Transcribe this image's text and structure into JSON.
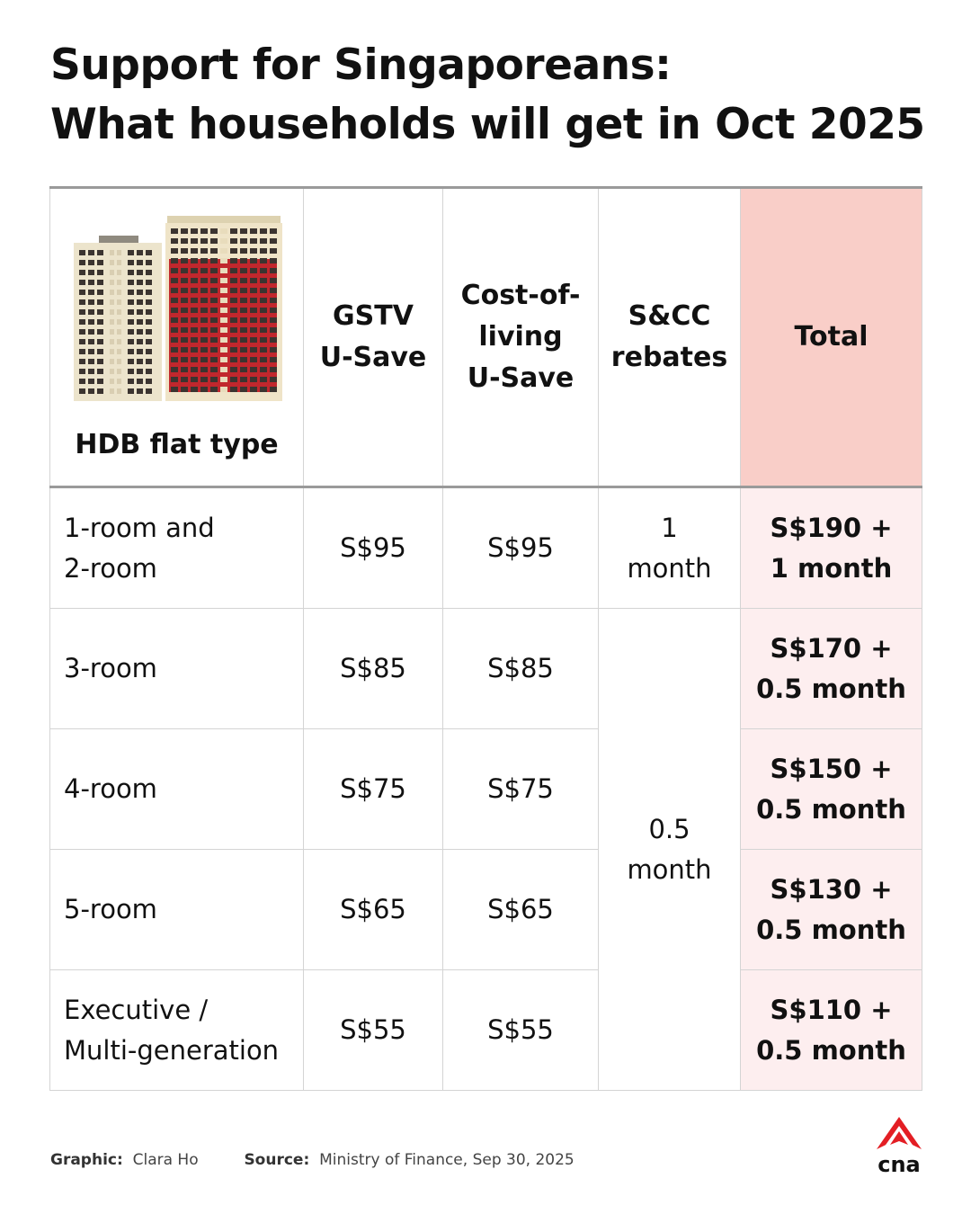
{
  "title": [
    "Support for Singaporeans:",
    "What households will get in Oct 2025"
  ],
  "chart_data": {
    "type": "table",
    "columns": [
      "HDB flat type",
      "GSTV\nU-Save",
      "Cost-of-\nliving\nU-Save",
      "S&CC\nrebates",
      "Total"
    ],
    "rows": [
      {
        "flat": "1-room and\n2-room",
        "gstv": "S$95",
        "col": "S$95",
        "total": "S$190 +\n1 month"
      },
      {
        "flat": "3-room",
        "gstv": "S$85",
        "col": "S$85",
        "total": "S$170 +\n0.5 month"
      },
      {
        "flat": "4-room",
        "gstv": "S$75",
        "col": "S$75",
        "total": "S$150 +\n0.5 month"
      },
      {
        "flat": "5-room",
        "gstv": "S$65",
        "col": "S$65",
        "total": "S$130 +\n0.5 month"
      },
      {
        "flat": "Executive /\nMulti-generation",
        "gstv": "S$55",
        "col": "S$55",
        "total": "S$110 +\n0.5 month"
      }
    ],
    "scc_rebates": [
      {
        "value": "1\nmonth",
        "applies_to": [
          "1-room and 2-room"
        ]
      },
      {
        "value": "0.5\nmonth",
        "applies_to": [
          "3-room",
          "4-room",
          "5-room",
          "Executive / Multi-generation"
        ]
      }
    ]
  },
  "footer": {
    "graphic_label": "Graphic:",
    "graphic_value": "Clara Ho",
    "source_label": "Source:",
    "source_value": "Ministry of Finance, Sep 30, 2025"
  },
  "logo": {
    "text": "cna",
    "color": "#e31e24"
  },
  "colors": {
    "total_header_bg": "#f9cec8",
    "total_cell_bg": "#fdeeef",
    "building_red": "#c1272d",
    "building_cream": "#efe4c8"
  }
}
